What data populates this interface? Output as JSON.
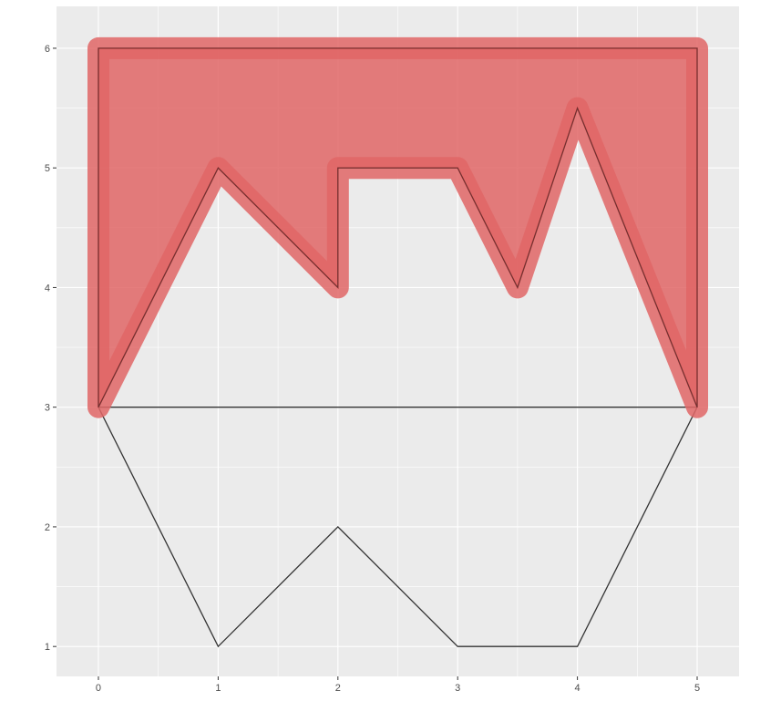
{
  "chart_data": {
    "type": "polygon",
    "title": "",
    "xlabel": "",
    "ylabel": "",
    "xlim": [
      -0.35,
      5.35
    ],
    "ylim": [
      0.75,
      6.35
    ],
    "x_ticks": [
      0,
      1,
      2,
      3,
      4,
      5
    ],
    "y_ticks": [
      1,
      2,
      3,
      4,
      5,
      6
    ],
    "grid": true,
    "background": "#ebebeb",
    "grid_color": "#ffffff",
    "polygons": [
      {
        "role": "upper shape (filled)",
        "points": [
          [
            0,
            3
          ],
          [
            1,
            5
          ],
          [
            2,
            4
          ],
          [
            2,
            5
          ],
          [
            3,
            5
          ],
          [
            3.5,
            4
          ],
          [
            4,
            5.5
          ],
          [
            5,
            3
          ],
          [
            5,
            6
          ],
          [
            0,
            6
          ]
        ],
        "fill": "#e06666",
        "fill_opacity": 0.85,
        "stroke": "#a33333",
        "outline_color": "#333333"
      },
      {
        "role": "lower shape (outline)",
        "points": [
          [
            0,
            3
          ],
          [
            1,
            1
          ],
          [
            2,
            2
          ],
          [
            3,
            1
          ],
          [
            4,
            1
          ],
          [
            5,
            3
          ]
        ],
        "fill": "none",
        "stroke": "#333333"
      }
    ]
  }
}
